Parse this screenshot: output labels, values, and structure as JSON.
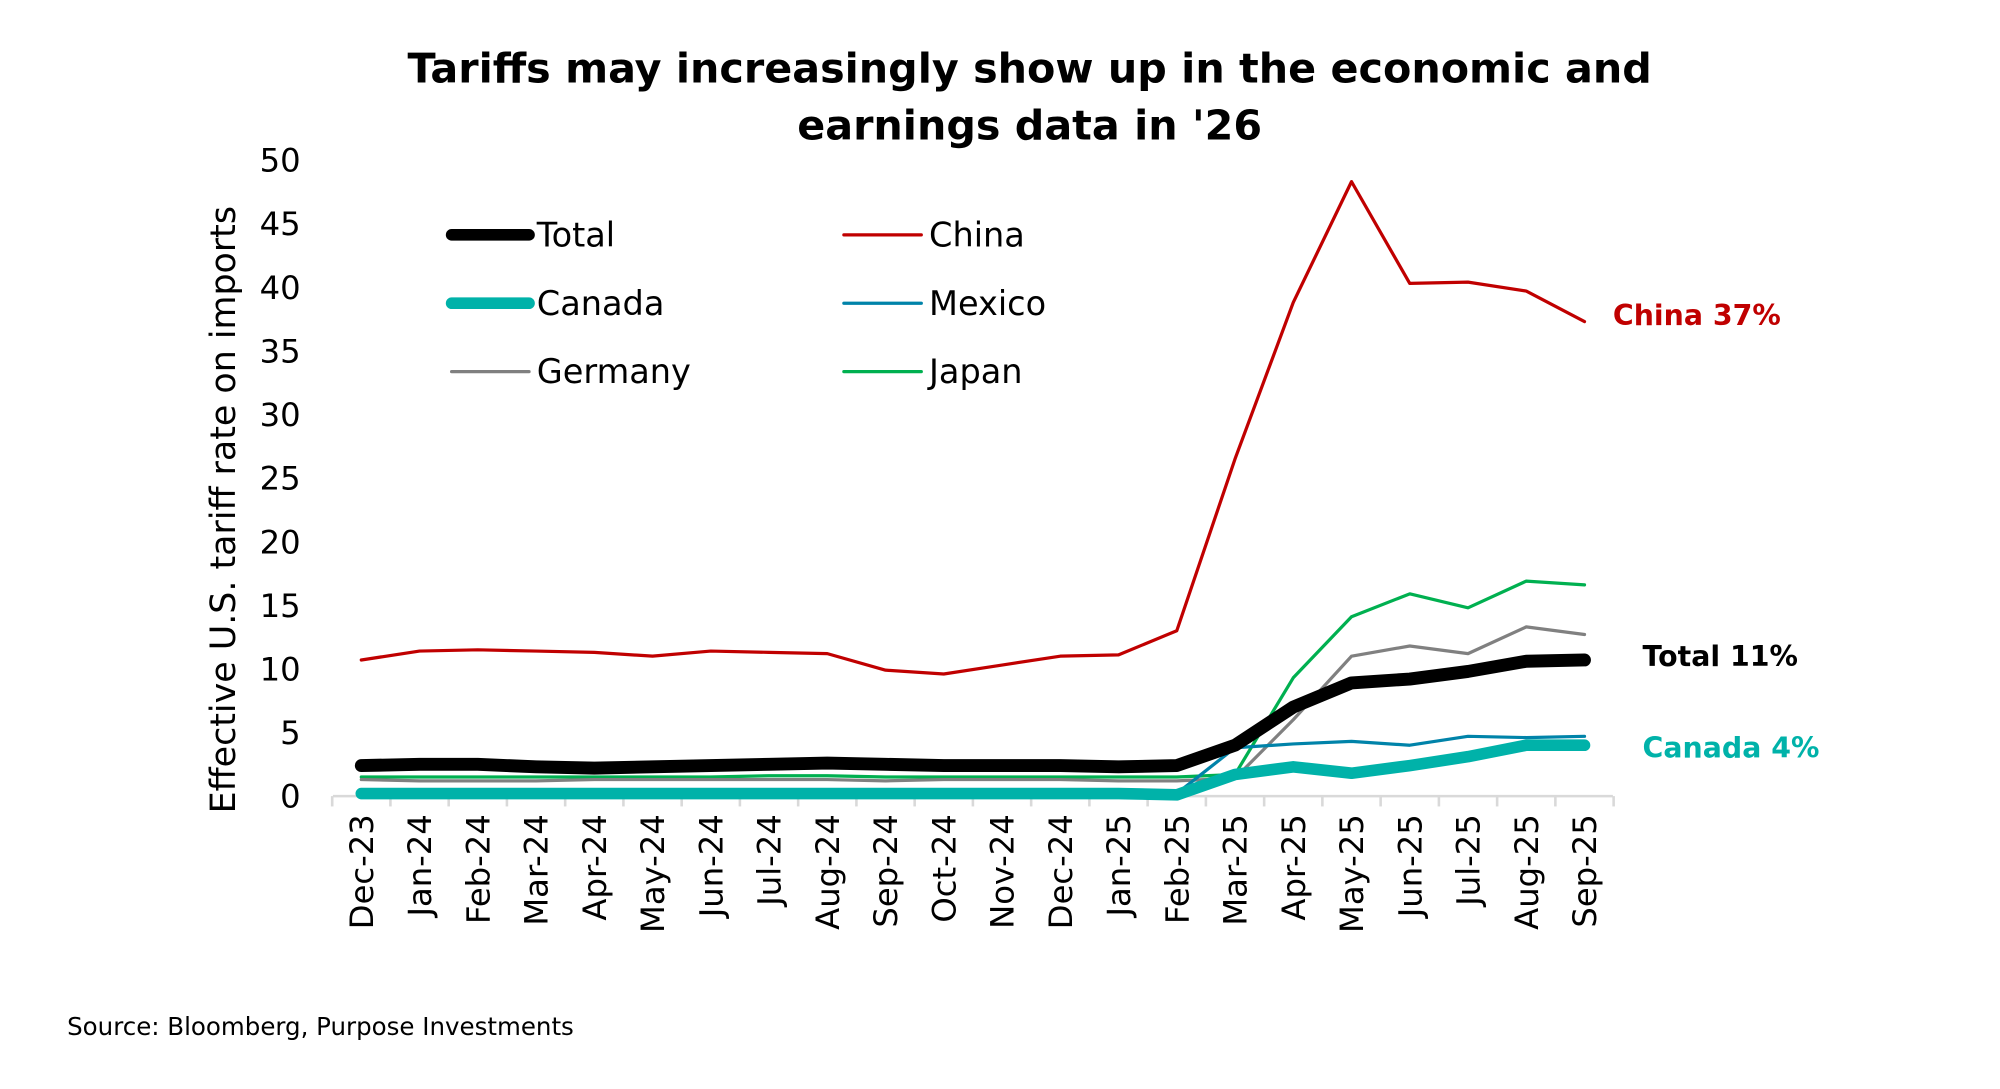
{
  "chart_data": {
    "type": "line",
    "title": "Tariffs may increasingly show up in the economic and earnings data in '26",
    "title_lines": [
      "Tariffs may increasingly show up in the economic and",
      "earnings data in '26"
    ],
    "ylabel": "Effective U.S. tariff rate on imports",
    "xlabel": "",
    "ylim": [
      0,
      50
    ],
    "yticks": [
      0,
      5,
      10,
      15,
      20,
      25,
      30,
      35,
      40,
      45,
      50
    ],
    "grid": false,
    "legend_placement": "top-left",
    "categories": [
      "Dec-23",
      "Jan-24",
      "Feb-24",
      "Mar-24",
      "Apr-24",
      "May-24",
      "Jun-24",
      "Jul-24",
      "Aug-24",
      "Sep-24",
      "Oct-24",
      "Nov-24",
      "Dec-24",
      "Jan-25",
      "Feb-25",
      "Mar-25",
      "Apr-25",
      "May-25",
      "Jun-25",
      "Jul-25",
      "Aug-25",
      "Sep-25"
    ],
    "series": [
      {
        "name": "China",
        "color": "#C00000",
        "width": 2.5,
        "values": [
          10.7,
          11.4,
          11.5,
          11.4,
          11.3,
          11.0,
          11.4,
          11.3,
          11.2,
          9.9,
          9.6,
          10.3,
          11.0,
          11.1,
          13.0,
          26.5,
          38.8,
          48.3,
          40.3,
          40.4,
          39.7,
          37.3
        ]
      },
      {
        "name": "Japan",
        "color": "#00B050",
        "width": 2.5,
        "values": [
          1.5,
          1.5,
          1.5,
          1.5,
          1.5,
          1.5,
          1.5,
          1.6,
          1.6,
          1.5,
          1.5,
          1.5,
          1.5,
          1.5,
          1.5,
          1.7,
          9.3,
          14.1,
          15.9,
          14.8,
          16.9,
          16.6
        ]
      },
      {
        "name": "Germany",
        "color": "#808080",
        "width": 2.5,
        "values": [
          1.3,
          1.2,
          1.2,
          1.2,
          1.3,
          1.3,
          1.3,
          1.3,
          1.3,
          1.2,
          1.3,
          1.3,
          1.3,
          1.2,
          1.2,
          1.4,
          6.0,
          11.0,
          11.8,
          11.2,
          13.3,
          12.7
        ]
      },
      {
        "name": "Mexico",
        "color": "#0083A9",
        "width": 2.5,
        "values": [
          0.2,
          0.2,
          0.2,
          0.2,
          0.2,
          0.2,
          0.2,
          0.2,
          0.2,
          0.2,
          0.2,
          0.2,
          0.2,
          0.2,
          0.2,
          3.8,
          4.1,
          4.3,
          4.0,
          4.7,
          4.6,
          4.7
        ]
      },
      {
        "name": "Canada",
        "color": "#00B2A9",
        "width": 9,
        "values": [
          0.2,
          0.2,
          0.2,
          0.2,
          0.2,
          0.2,
          0.2,
          0.2,
          0.2,
          0.2,
          0.2,
          0.2,
          0.2,
          0.2,
          0.1,
          1.7,
          2.3,
          1.8,
          2.4,
          3.1,
          4.0,
          4.0
        ]
      },
      {
        "name": "Total",
        "color": "#000000",
        "width": 10,
        "values": [
          2.4,
          2.5,
          2.5,
          2.3,
          2.2,
          2.3,
          2.4,
          2.5,
          2.6,
          2.5,
          2.4,
          2.4,
          2.4,
          2.3,
          2.4,
          4.0,
          7.0,
          8.9,
          9.2,
          9.8,
          10.6,
          10.7
        ]
      }
    ],
    "legend": [
      "Total",
      "China",
      "Canada",
      "Mexico",
      "Germany",
      "Japan"
    ],
    "annotations": [
      {
        "text": "China 37%",
        "color": "#C00000",
        "series": "China"
      },
      {
        "text": "Total 11%",
        "color": "#000000",
        "series": "Total"
      },
      {
        "text": "Canada 4%",
        "color": "#00B2A9",
        "series": "Canada"
      }
    ]
  },
  "source": "Source: Bloomberg, Purpose Investments"
}
